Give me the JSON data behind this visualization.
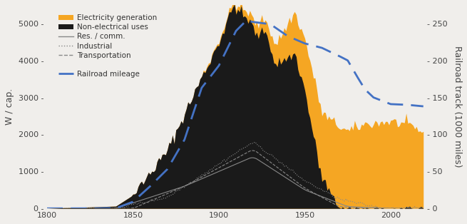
{
  "title": "",
  "ylabel_left": "W / cap.",
  "ylabel_right": "Railroad track (1000 miles)",
  "xlim": [
    1800,
    2019
  ],
  "ylim_left": [
    0,
    5500
  ],
  "ylim_right": [
    0,
    275
  ],
  "bg_color": "#f0eeeb",
  "elec_color": "#f5a623",
  "nonelec_color": "#1a1a1a",
  "line_res_color": "#888888",
  "line_ind_color": "#888888",
  "line_trans_color": "#888888",
  "railroad_color": "#4472c4",
  "yticks_left": [
    0,
    1000,
    2000,
    3000,
    4000,
    5000
  ],
  "yticks_right": [
    0,
    50,
    100,
    150,
    200,
    250
  ],
  "xticks": [
    1800,
    1850,
    1900,
    1950,
    2000
  ],
  "railroad_years": [
    1800,
    1830,
    1840,
    1850,
    1860,
    1870,
    1880,
    1890,
    1900,
    1910,
    1916,
    1920,
    1930,
    1940,
    1950,
    1960,
    1970,
    1975,
    1980,
    1985,
    1990,
    2000,
    2010,
    2019
  ],
  "railroad_vals": [
    0,
    0.02,
    0.3,
    9,
    30,
    53,
    93,
    163,
    193,
    240,
    254,
    252,
    249,
    233,
    223,
    217,
    206,
    200,
    180,
    161,
    150,
    141,
    140,
    138
  ]
}
